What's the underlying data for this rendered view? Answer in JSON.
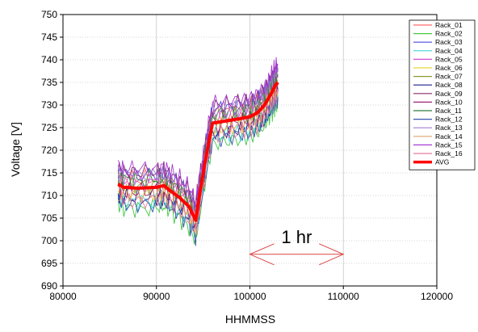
{
  "chart_data": {
    "type": "line",
    "xlabel": "HHMMSS",
    "ylabel": "Voltage [V]",
    "xlim": [
      80000,
      120000
    ],
    "ylim": [
      690,
      750
    ],
    "xticks": [
      80000,
      90000,
      100000,
      110000,
      120000
    ],
    "yticks": [
      690,
      695,
      700,
      705,
      710,
      715,
      720,
      725,
      730,
      735,
      740,
      745,
      750
    ],
    "grid": true,
    "legend_position": "top-right",
    "annotation": {
      "text": "1 hr",
      "arrow_from_x": 100000,
      "arrow_to_x": 110000,
      "arrow_y": 697
    },
    "avg": {
      "name": "AVG",
      "color": "#ff0000",
      "x": [
        85900,
        86500,
        88000,
        90000,
        90800,
        91500,
        92500,
        93500,
        94200,
        94600,
        95300,
        96000,
        97500,
        99000,
        100000,
        100800,
        101500,
        102000,
        102400,
        102700,
        103000
      ],
      "y": [
        712.5,
        711.8,
        711.6,
        711.8,
        712.2,
        711.0,
        709.5,
        707.5,
        704.5,
        710.0,
        718.5,
        726.0,
        726.5,
        727.0,
        727.4,
        728.3,
        729.8,
        731.5,
        733.0,
        734.3,
        735.0
      ]
    },
    "racks": {
      "x": [
        85900,
        86500,
        88000,
        90000,
        90800,
        91500,
        92500,
        93500,
        94200,
        94600,
        95300,
        96000,
        97500,
        99000,
        100000,
        100800,
        101500,
        102000,
        102400,
        102700,
        103000
      ],
      "base": [
        712.5,
        711.8,
        711.6,
        711.8,
        712.2,
        711.0,
        709.5,
        707.5,
        704.5,
        710.0,
        718.5,
        726.0,
        726.5,
        727.0,
        727.4,
        728.3,
        729.8,
        731.5,
        733.0,
        734.3,
        735.0
      ],
      "series": [
        {
          "name": "Rack_01",
          "color": "#ff6b6b",
          "offset": 2.0
        },
        {
          "name": "Rack_02",
          "color": "#46c846",
          "offset": -4.5
        },
        {
          "name": "Rack_03",
          "color": "#4a4ad8",
          "offset": 3.0
        },
        {
          "name": "Rack_04",
          "color": "#3ad4d4",
          "offset": -3.0
        },
        {
          "name": "Rack_05",
          "color": "#d24bd2",
          "offset": 1.2
        },
        {
          "name": "Rack_06",
          "color": "#e6d93a",
          "offset": -1.5
        },
        {
          "name": "Rack_07",
          "color": "#8a9a2e",
          "offset": 0.6
        },
        {
          "name": "Rack_08",
          "color": "#1e1e8c",
          "offset": -2.2
        },
        {
          "name": "Rack_09",
          "color": "#8a2a6a",
          "offset": 3.6
        },
        {
          "name": "Rack_10",
          "color": "#a0236e",
          "offset": -0.8
        },
        {
          "name": "Rack_11",
          "color": "#2e7d3a",
          "offset": 1.8
        },
        {
          "name": "Rack_12",
          "color": "#3a56b0",
          "offset": -3.6
        },
        {
          "name": "Rack_13",
          "color": "#a07cd0",
          "offset": 2.6
        },
        {
          "name": "Rack_14",
          "color": "#e0a070",
          "offset": -1.0
        },
        {
          "name": "Rack_15",
          "color": "#a83ad4",
          "offset": 4.2
        },
        {
          "name": "Rack_16",
          "color": "#e87c9c",
          "offset": -2.8
        }
      ]
    }
  }
}
